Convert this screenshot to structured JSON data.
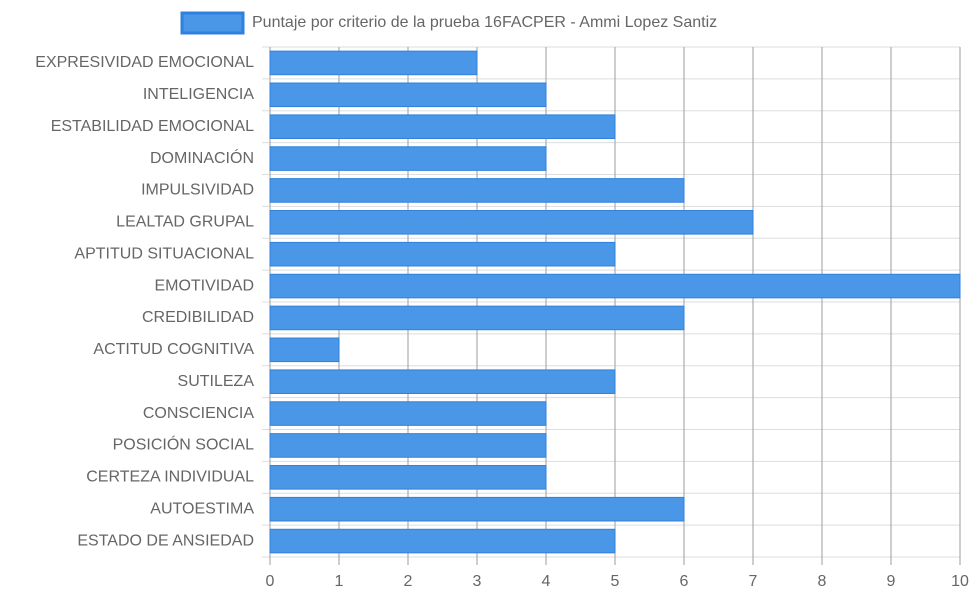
{
  "chart_data": {
    "type": "bar",
    "orientation": "horizontal",
    "categories": [
      "EXPRESIVIDAD EMOCIONAL",
      "INTELIGENCIA",
      "ESTABILIDAD EMOCIONAL",
      "DOMINACIÓN",
      "IMPULSIVIDAD",
      "LEALTAD GRUPAL",
      "APTITUD SITUACIONAL",
      "EMOTIVIDAD",
      "CREDIBILIDAD",
      "ACTITUD COGNITIVA",
      "SUTILEZA",
      "CONSCIENCIA",
      "POSICIÓN SOCIAL",
      "CERTEZA INDIVIDUAL",
      "AUTOESTIMA",
      "ESTADO DE ANSIEDAD"
    ],
    "series": [
      {
        "name": "Puntaje por criterio de la prueba 16FACPER - Ammi Lopez Santiz",
        "values": [
          3,
          4,
          5,
          4,
          6,
          7,
          5,
          10,
          6,
          1,
          5,
          4,
          4,
          4,
          6,
          5
        ],
        "color": "#4a97e8",
        "border_color": "#2f80de"
      }
    ],
    "x_ticks": [
      "0",
      "1",
      "2",
      "3",
      "4",
      "5",
      "6",
      "7",
      "8",
      "9",
      "10"
    ],
    "xlim": [
      0,
      10
    ],
    "grid": true,
    "legend_position": "top",
    "colors": {
      "text": "#666666",
      "grid": "#dddddd",
      "vertical_grid": "#9e9e9e",
      "axis": "#9e9e9e"
    }
  }
}
